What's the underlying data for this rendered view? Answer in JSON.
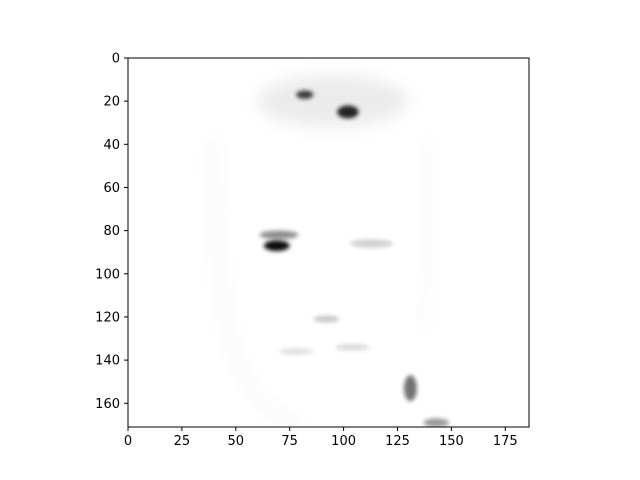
{
  "chart_data": {
    "type": "heatmap",
    "title": "",
    "xlabel": "",
    "ylabel": "",
    "colormap": "gray_r",
    "xlim": [
      0,
      186
    ],
    "ylim": [
      171,
      0
    ],
    "x_ticks": [
      0,
      25,
      50,
      75,
      100,
      125,
      150,
      175
    ],
    "y_ticks": [
      0,
      20,
      40,
      60,
      80,
      100,
      120,
      140,
      160
    ],
    "grid": false,
    "legend": "none",
    "features": [
      {
        "name": "hair-left-dark-spot",
        "x": 82,
        "y": 17,
        "rx": 4,
        "ry": 2,
        "intensity": 0.75
      },
      {
        "name": "hair-right-dark-blob",
        "x": 102,
        "y": 25,
        "rx": 5,
        "ry": 3,
        "intensity": 0.85
      },
      {
        "name": "hair-haze",
        "x": 95,
        "y": 20,
        "rx": 35,
        "ry": 12,
        "intensity": 0.08
      },
      {
        "name": "left-eye",
        "x": 69,
        "y": 87,
        "rx": 6,
        "ry": 2.5,
        "intensity": 0.95
      },
      {
        "name": "left-eyebrow",
        "x": 70,
        "y": 82,
        "rx": 9,
        "ry": 2,
        "intensity": 0.45
      },
      {
        "name": "right-eye",
        "x": 113,
        "y": 86,
        "rx": 10,
        "ry": 2,
        "intensity": 0.18
      },
      {
        "name": "nose-tip",
        "x": 92,
        "y": 121,
        "rx": 6,
        "ry": 1.6,
        "intensity": 0.22
      },
      {
        "name": "mouth-left",
        "x": 78,
        "y": 136,
        "rx": 8,
        "ry": 1.6,
        "intensity": 0.12
      },
      {
        "name": "mouth-right",
        "x": 104,
        "y": 134,
        "rx": 8,
        "ry": 1.6,
        "intensity": 0.14
      },
      {
        "name": "chin-right-dark",
        "x": 131,
        "y": 153,
        "rx": 3,
        "ry": 6,
        "intensity": 0.55
      },
      {
        "name": "bottom-edge-dark",
        "x": 143,
        "y": 169,
        "rx": 6,
        "ry": 2,
        "intensity": 0.4
      }
    ]
  }
}
